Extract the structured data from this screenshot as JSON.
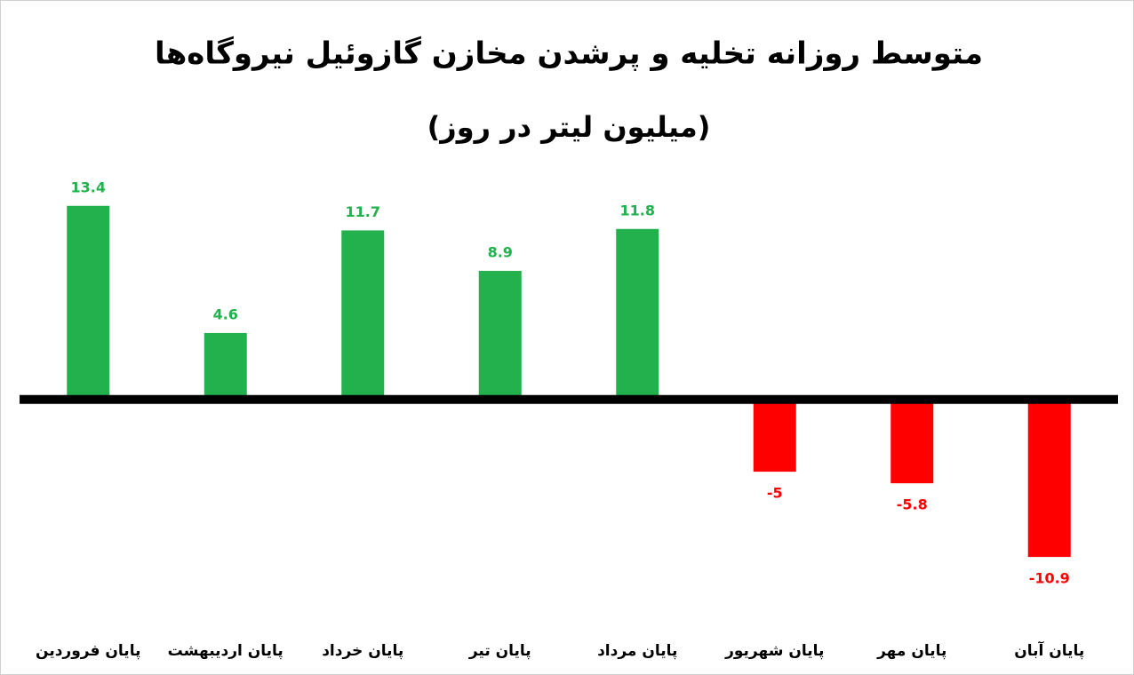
{
  "chart_data": {
    "type": "bar",
    "title": "متوسط روزانه تخلیه و پرشدن مخازن گازوئیل نیروگاه‌ها",
    "subtitle": "(میلیون لیتر در روز)",
    "categories": [
      "پایان فروردین",
      "پایان اردیبهشت",
      "پایان خرداد",
      "پایان تیر",
      "پایان مرداد",
      "پایان شهریور",
      "پایان مهر",
      "پایان آبان"
    ],
    "values": [
      13.4,
      4.6,
      11.7,
      8.9,
      11.8,
      -5,
      -5.8,
      -10.9
    ],
    "color": "#22b14c",
    "negative_color": "#ff0000",
    "ylim": [
      -12,
      14
    ]
  }
}
